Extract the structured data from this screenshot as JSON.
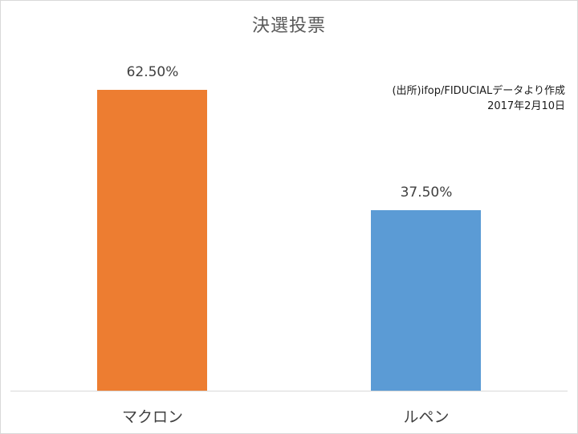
{
  "chart_data": {
    "type": "bar",
    "title": "決選投票",
    "categories": [
      "マクロン",
      "ルペン"
    ],
    "values": [
      62.5,
      37.5
    ],
    "value_labels": [
      "62.50%",
      "37.50%"
    ],
    "colors": [
      "#ed7d31",
      "#5b9bd5"
    ],
    "xlabel": "",
    "ylabel": "",
    "ylim": [
      0,
      70
    ],
    "grid": false,
    "legend": null,
    "annotations": [
      "(出所)ifop/FIDUCIALデータより作成",
      "2017年2月10日"
    ]
  },
  "chart": {
    "title": "決選投票",
    "source_line1": "(出所)ifop/FIDUCIALデータより作成",
    "source_line2": "2017年2月10日",
    "bars": [
      {
        "category": "マクロン",
        "label": "62.50%",
        "color": "#ed7d31"
      },
      {
        "category": "ルペン",
        "label": "37.50%",
        "color": "#5b9bd5"
      }
    ]
  }
}
